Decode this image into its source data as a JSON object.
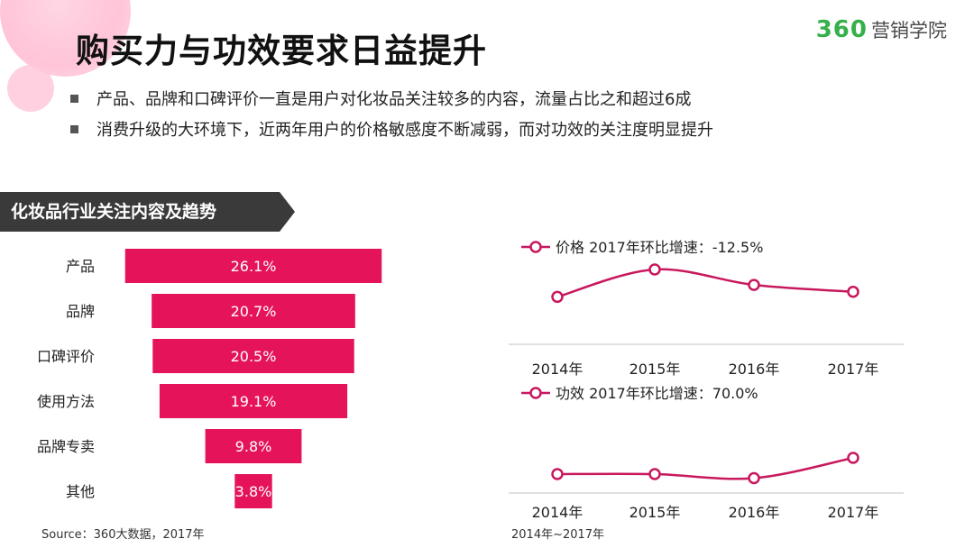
{
  "header": {
    "title": "购买力与功效要求日益提升",
    "logo_number": "360",
    "logo_text": "营销学院"
  },
  "bullets": [
    "产品、品牌和口碑评价一直是用户对化妆品关注较多的内容，流量占比之和超过6成",
    "消费升级的大环境下，近两年用户的价格敏感度不断减弱，而对功效的关注度明显提升"
  ],
  "section_title": "化妆品行业关注内容及趋势",
  "colors": {
    "accent": "#e5145a",
    "line": "#c8185e",
    "header_bg": "#3a3a3a",
    "logo_green": "#36b04a"
  },
  "chart_data": [
    {
      "type": "bar",
      "orientation": "horizontal-centered",
      "categories": [
        "产品",
        "品牌",
        "口碑评价",
        "使用方法",
        "品牌专卖",
        "其他"
      ],
      "values": [
        26.1,
        20.7,
        20.5,
        19.1,
        9.8,
        3.8
      ],
      "value_labels": [
        "26.1%",
        "20.7%",
        "20.5%",
        "19.1%",
        "9.8%",
        "3.8%"
      ],
      "unit": "%",
      "source": "Source：360大数据，2017年"
    },
    {
      "type": "line",
      "legend": "价格 2017年环比增速：-12.5%",
      "x": [
        "2014年",
        "2015年",
        "2016年",
        "2017年"
      ],
      "values": [
        0.2,
        1.0,
        0.55,
        0.35
      ],
      "y_axis_shown": false
    },
    {
      "type": "line",
      "legend": "功效 2017年环比增速：70.0%",
      "x": [
        "2014年",
        "2015年",
        "2016年",
        "2017年"
      ],
      "values": [
        0.3,
        0.3,
        0.15,
        0.9
      ],
      "y_axis_shown": false,
      "source": "2014年~2017年"
    }
  ]
}
